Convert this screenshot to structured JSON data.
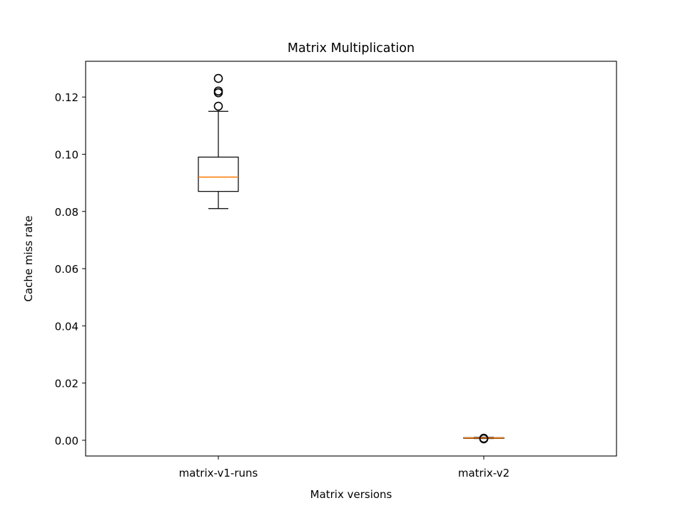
{
  "chart_data": {
    "type": "boxplot",
    "title": "Matrix Multiplication",
    "xlabel": "Matrix versions",
    "ylabel": "Cache miss rate",
    "categories": [
      "matrix-v1-runs",
      "matrix-v2"
    ],
    "ylim": [
      -0.0055,
      0.1325
    ],
    "yticks": [
      "0.00",
      "0.02",
      "0.04",
      "0.06",
      "0.08",
      "0.10",
      "0.12"
    ],
    "grid": false,
    "boxes": [
      {
        "category": "matrix-v1-runs",
        "whisker_low": 0.081,
        "q1": 0.087,
        "median": 0.092,
        "q3": 0.099,
        "whisker_high": 0.115,
        "outliers": [
          0.1168,
          0.1215,
          0.1221,
          0.1265
        ]
      },
      {
        "category": "matrix-v2",
        "whisker_low": 0.0006,
        "q1": 0.0007,
        "median": 0.0008,
        "q3": 0.0009,
        "whisker_high": 0.001,
        "outliers": [
          0.0005,
          0.0007
        ]
      }
    ],
    "colors": {
      "box": "#000000",
      "median": "#ff7f0e",
      "outlier": "#000000"
    }
  }
}
